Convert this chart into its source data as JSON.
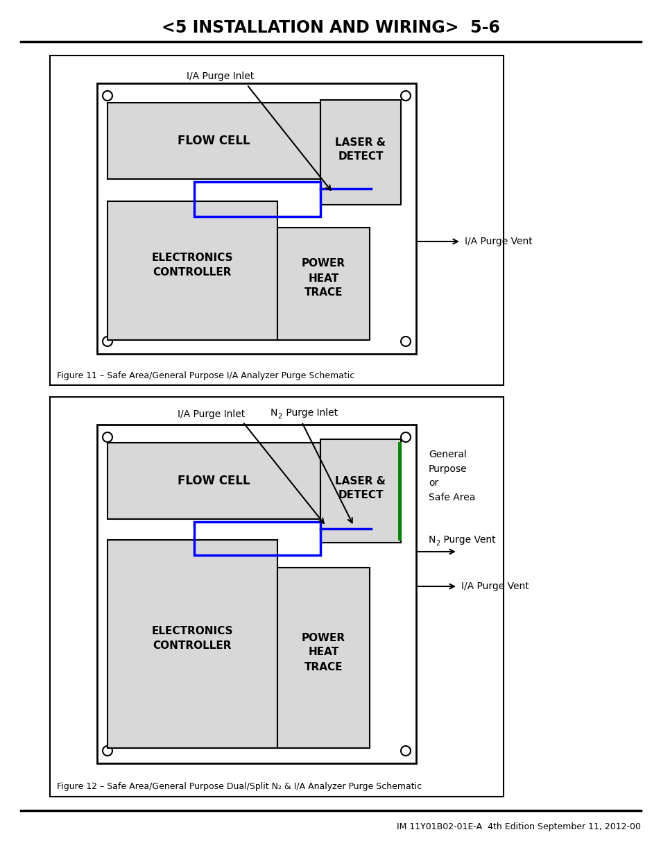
{
  "title": "<5 INSTALLATION AND WIRING>  5-6",
  "footer": "IM 11Y01B02-01E-A  4th Edition September 11, 2012-00",
  "fig1_caption": "Figure 11 – Safe Area/General Purpose I/A Analyzer Purge Schematic",
  "fig2_caption": "Figure 12 – Safe Area/General Purpose Dual/Split N₂ & I/A Analyzer Purge Schematic",
  "bg_color": "#ffffff",
  "gray_box": "#d8d8d8",
  "blue_color": "#0000ff",
  "green_color": "#008800"
}
